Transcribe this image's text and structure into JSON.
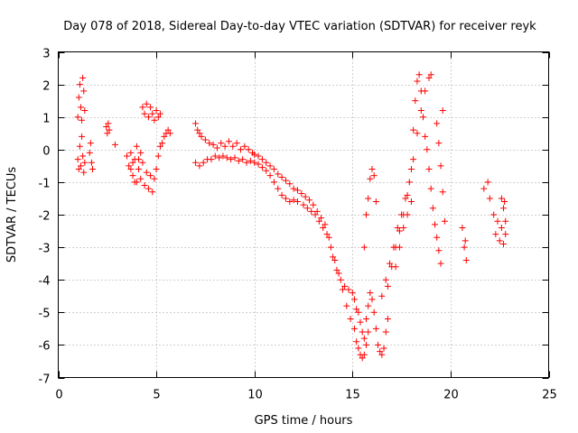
{
  "chart_data": {
    "type": "scatter",
    "title": "Day 078 of 2018, Sidereal Day-to-day VTEC variation (SDTVAR) for receiver reyk",
    "xlabel": "GPS time / hours",
    "ylabel": "SDTVAR / TECUs",
    "xlim": [
      0,
      25
    ],
    "ylim": [
      -7,
      3
    ],
    "xticks": [
      0,
      5,
      10,
      15,
      20,
      25
    ],
    "yticks": [
      -7,
      -6,
      -5,
      -4,
      -3,
      -2,
      -1,
      0,
      1,
      2,
      3
    ],
    "grid": true,
    "marker": "plus",
    "color": "#ff0000",
    "series": [
      {
        "name": "SDTVAR",
        "points": [
          [
            1.0,
            1.0
          ],
          [
            1.05,
            1.6
          ],
          [
            1.1,
            2.0
          ],
          [
            1.15,
            1.3
          ],
          [
            1.2,
            0.9
          ],
          [
            1.25,
            2.2
          ],
          [
            1.3,
            1.8
          ],
          [
            1.35,
            1.2
          ],
          [
            1.0,
            -0.3
          ],
          [
            1.05,
            -0.6
          ],
          [
            1.1,
            0.1
          ],
          [
            1.15,
            -0.5
          ],
          [
            1.2,
            0.4
          ],
          [
            1.25,
            -0.2
          ],
          [
            1.3,
            -0.7
          ],
          [
            1.35,
            -0.4
          ],
          [
            1.6,
            -0.1
          ],
          [
            1.65,
            0.2
          ],
          [
            1.7,
            -0.4
          ],
          [
            1.75,
            -0.6
          ],
          [
            2.45,
            0.7
          ],
          [
            2.5,
            0.5
          ],
          [
            2.55,
            0.8
          ],
          [
            2.6,
            0.6
          ],
          [
            2.9,
            0.15
          ],
          [
            3.5,
            -0.2
          ],
          [
            3.6,
            -0.5
          ],
          [
            3.7,
            -0.1
          ],
          [
            3.8,
            -0.8
          ],
          [
            3.9,
            -0.3
          ],
          [
            4.0,
            -1.0
          ],
          [
            4.1,
            -0.6
          ],
          [
            4.2,
            -0.9
          ],
          [
            4.3,
            -0.4
          ],
          [
            4.4,
            -1.1
          ],
          [
            4.5,
            -0.7
          ],
          [
            4.6,
            -1.2
          ],
          [
            4.7,
            -0.8
          ],
          [
            4.8,
            -1.3
          ],
          [
            4.9,
            -0.9
          ],
          [
            5.0,
            -0.6
          ],
          [
            5.1,
            -0.2
          ],
          [
            5.2,
            0.1
          ],
          [
            5.3,
            0.2
          ],
          [
            5.4,
            0.4
          ],
          [
            5.5,
            0.5
          ],
          [
            5.6,
            0.6
          ],
          [
            5.7,
            0.5
          ],
          [
            3.7,
            -0.6
          ],
          [
            3.8,
            -0.4
          ],
          [
            3.9,
            -1.0
          ],
          [
            4.0,
            0.1
          ],
          [
            4.1,
            -0.3
          ],
          [
            4.2,
            -0.1
          ],
          [
            4.3,
            1.3
          ],
          [
            4.4,
            1.1
          ],
          [
            4.5,
            1.4
          ],
          [
            4.6,
            1.0
          ],
          [
            4.7,
            1.3
          ],
          [
            4.8,
            1.1
          ],
          [
            4.9,
            0.9
          ],
          [
            5.0,
            1.2
          ],
          [
            5.1,
            1.0
          ],
          [
            5.2,
            1.1
          ],
          [
            7.0,
            0.8
          ],
          [
            7.1,
            0.6
          ],
          [
            7.2,
            0.5
          ],
          [
            7.3,
            0.4
          ],
          [
            7.5,
            0.3
          ],
          [
            7.7,
            0.2
          ],
          [
            7.9,
            0.15
          ],
          [
            8.1,
            0.05
          ],
          [
            8.3,
            0.2
          ],
          [
            8.5,
            0.1
          ],
          [
            8.7,
            0.25
          ],
          [
            8.9,
            0.1
          ],
          [
            9.1,
            0.2
          ],
          [
            9.3,
            0.0
          ],
          [
            9.5,
            0.1
          ],
          [
            9.7,
            0.0
          ],
          [
            9.9,
            -0.1
          ],
          [
            7.0,
            -0.4
          ],
          [
            7.2,
            -0.5
          ],
          [
            7.4,
            -0.4
          ],
          [
            7.6,
            -0.3
          ],
          [
            7.8,
            -0.3
          ],
          [
            8.0,
            -0.2
          ],
          [
            8.2,
            -0.25
          ],
          [
            8.4,
            -0.2
          ],
          [
            8.6,
            -0.25
          ],
          [
            8.8,
            -0.3
          ],
          [
            9.0,
            -0.25
          ],
          [
            9.2,
            -0.35
          ],
          [
            9.4,
            -0.3
          ],
          [
            9.6,
            -0.4
          ],
          [
            9.8,
            -0.35
          ],
          [
            10.0,
            -0.15
          ],
          [
            10.2,
            -0.2
          ],
          [
            10.4,
            -0.3
          ],
          [
            10.6,
            -0.4
          ],
          [
            10.8,
            -0.5
          ],
          [
            11.0,
            -0.6
          ],
          [
            11.2,
            -0.75
          ],
          [
            11.4,
            -0.85
          ],
          [
            11.6,
            -0.95
          ],
          [
            11.8,
            -1.05
          ],
          [
            12.0,
            -1.2
          ],
          [
            12.2,
            -1.25
          ],
          [
            12.4,
            -1.35
          ],
          [
            12.6,
            -1.45
          ],
          [
            12.8,
            -1.55
          ],
          [
            13.0,
            -1.7
          ],
          [
            13.2,
            -1.9
          ],
          [
            13.4,
            -2.1
          ],
          [
            13.6,
            -2.3
          ],
          [
            13.8,
            -2.7
          ],
          [
            14.0,
            -3.3
          ],
          [
            14.2,
            -3.7
          ],
          [
            14.4,
            -4.0
          ],
          [
            14.6,
            -4.2
          ],
          [
            14.8,
            -4.3
          ],
          [
            15.0,
            -4.4
          ],
          [
            10.0,
            -0.4
          ],
          [
            10.2,
            -0.45
          ],
          [
            10.4,
            -0.55
          ],
          [
            10.6,
            -0.65
          ],
          [
            10.8,
            -0.8
          ],
          [
            11.0,
            -1.0
          ],
          [
            11.2,
            -1.2
          ],
          [
            11.4,
            -1.4
          ],
          [
            11.6,
            -1.5
          ],
          [
            11.8,
            -1.6
          ],
          [
            12.0,
            -1.55
          ],
          [
            12.2,
            -1.6
          ],
          [
            12.5,
            -1.7
          ],
          [
            12.7,
            -1.8
          ],
          [
            12.9,
            -1.9
          ],
          [
            13.1,
            -2.0
          ],
          [
            13.3,
            -2.2
          ],
          [
            13.5,
            -2.4
          ],
          [
            13.7,
            -2.6
          ],
          [
            13.9,
            -3.0
          ],
          [
            14.1,
            -3.4
          ],
          [
            14.3,
            -3.8
          ],
          [
            14.5,
            -4.3
          ],
          [
            14.7,
            -4.8
          ],
          [
            14.9,
            -5.2
          ],
          [
            15.1,
            -5.5
          ],
          [
            15.2,
            -5.9
          ],
          [
            15.3,
            -6.1
          ],
          [
            15.4,
            -6.3
          ],
          [
            15.5,
            -6.4
          ],
          [
            15.6,
            -6.3
          ],
          [
            15.7,
            -6.0
          ],
          [
            15.8,
            -5.6
          ],
          [
            15.1,
            -4.6
          ],
          [
            15.2,
            -4.9
          ],
          [
            15.3,
            -5.0
          ],
          [
            15.4,
            -5.3
          ],
          [
            15.5,
            -5.6
          ],
          [
            15.6,
            -5.8
          ],
          [
            15.7,
            -5.2
          ],
          [
            15.8,
            -4.8
          ],
          [
            15.9,
            -4.4
          ],
          [
            16.0,
            -4.6
          ],
          [
            16.1,
            -5.0
          ],
          [
            16.2,
            -5.5
          ],
          [
            16.3,
            -6.0
          ],
          [
            16.4,
            -6.2
          ],
          [
            16.5,
            -6.3
          ],
          [
            16.6,
            -6.1
          ],
          [
            16.7,
            -5.6
          ],
          [
            16.8,
            -5.2
          ],
          [
            15.6,
            -3.0
          ],
          [
            15.7,
            -2.0
          ],
          [
            15.8,
            -1.5
          ],
          [
            15.9,
            -0.9
          ],
          [
            16.0,
            -0.6
          ],
          [
            16.1,
            -0.8
          ],
          [
            16.2,
            -1.6
          ],
          [
            16.5,
            -4.5
          ],
          [
            16.7,
            -4.0
          ],
          [
            16.9,
            -3.5
          ],
          [
            17.1,
            -3.0
          ],
          [
            17.3,
            -2.4
          ],
          [
            17.5,
            -2.0
          ],
          [
            17.7,
            -1.5
          ],
          [
            17.9,
            -1.0
          ],
          [
            18.1,
            -0.3
          ],
          [
            18.3,
            0.5
          ],
          [
            18.5,
            1.2
          ],
          [
            18.7,
            1.8
          ],
          [
            18.9,
            2.2
          ],
          [
            19.0,
            2.3
          ],
          [
            16.8,
            -4.2
          ],
          [
            17.0,
            -3.6
          ],
          [
            17.2,
            -3.0
          ],
          [
            17.4,
            -2.5
          ],
          [
            17.6,
            -2.0
          ],
          [
            17.8,
            -1.4
          ],
          [
            18.0,
            -0.6
          ],
          [
            18.1,
            0.6
          ],
          [
            18.2,
            1.5
          ],
          [
            18.3,
            2.1
          ],
          [
            18.4,
            2.3
          ],
          [
            18.5,
            1.8
          ],
          [
            18.6,
            1.0
          ],
          [
            18.7,
            0.4
          ],
          [
            18.8,
            0.0
          ],
          [
            18.9,
            -0.6
          ],
          [
            19.0,
            -1.2
          ],
          [
            19.1,
            -1.8
          ],
          [
            19.2,
            -2.3
          ],
          [
            19.3,
            -2.7
          ],
          [
            19.4,
            -3.1
          ],
          [
            19.5,
            -3.5
          ],
          [
            19.3,
            0.8
          ],
          [
            19.4,
            0.2
          ],
          [
            19.5,
            -0.5
          ],
          [
            19.6,
            -1.3
          ],
          [
            19.7,
            -2.2
          ],
          [
            19.6,
            1.2
          ],
          [
            17.2,
            -3.6
          ],
          [
            17.4,
            -3.0
          ],
          [
            17.6,
            -2.4
          ],
          [
            17.8,
            -2.0
          ],
          [
            18.0,
            -1.6
          ],
          [
            20.6,
            -2.4
          ],
          [
            20.7,
            -3.0
          ],
          [
            20.8,
            -3.4
          ],
          [
            20.75,
            -2.8
          ],
          [
            21.7,
            -1.2
          ],
          [
            21.9,
            -1.0
          ],
          [
            22.0,
            -1.5
          ],
          [
            22.2,
            -2.0
          ],
          [
            22.3,
            -2.6
          ],
          [
            22.4,
            -2.2
          ],
          [
            22.5,
            -2.8
          ],
          [
            22.6,
            -2.4
          ],
          [
            22.7,
            -1.8
          ],
          [
            22.8,
            -2.2
          ],
          [
            22.6,
            -1.5
          ],
          [
            22.7,
            -2.9
          ],
          [
            22.8,
            -2.6
          ],
          [
            22.75,
            -1.6
          ]
        ]
      }
    ]
  }
}
